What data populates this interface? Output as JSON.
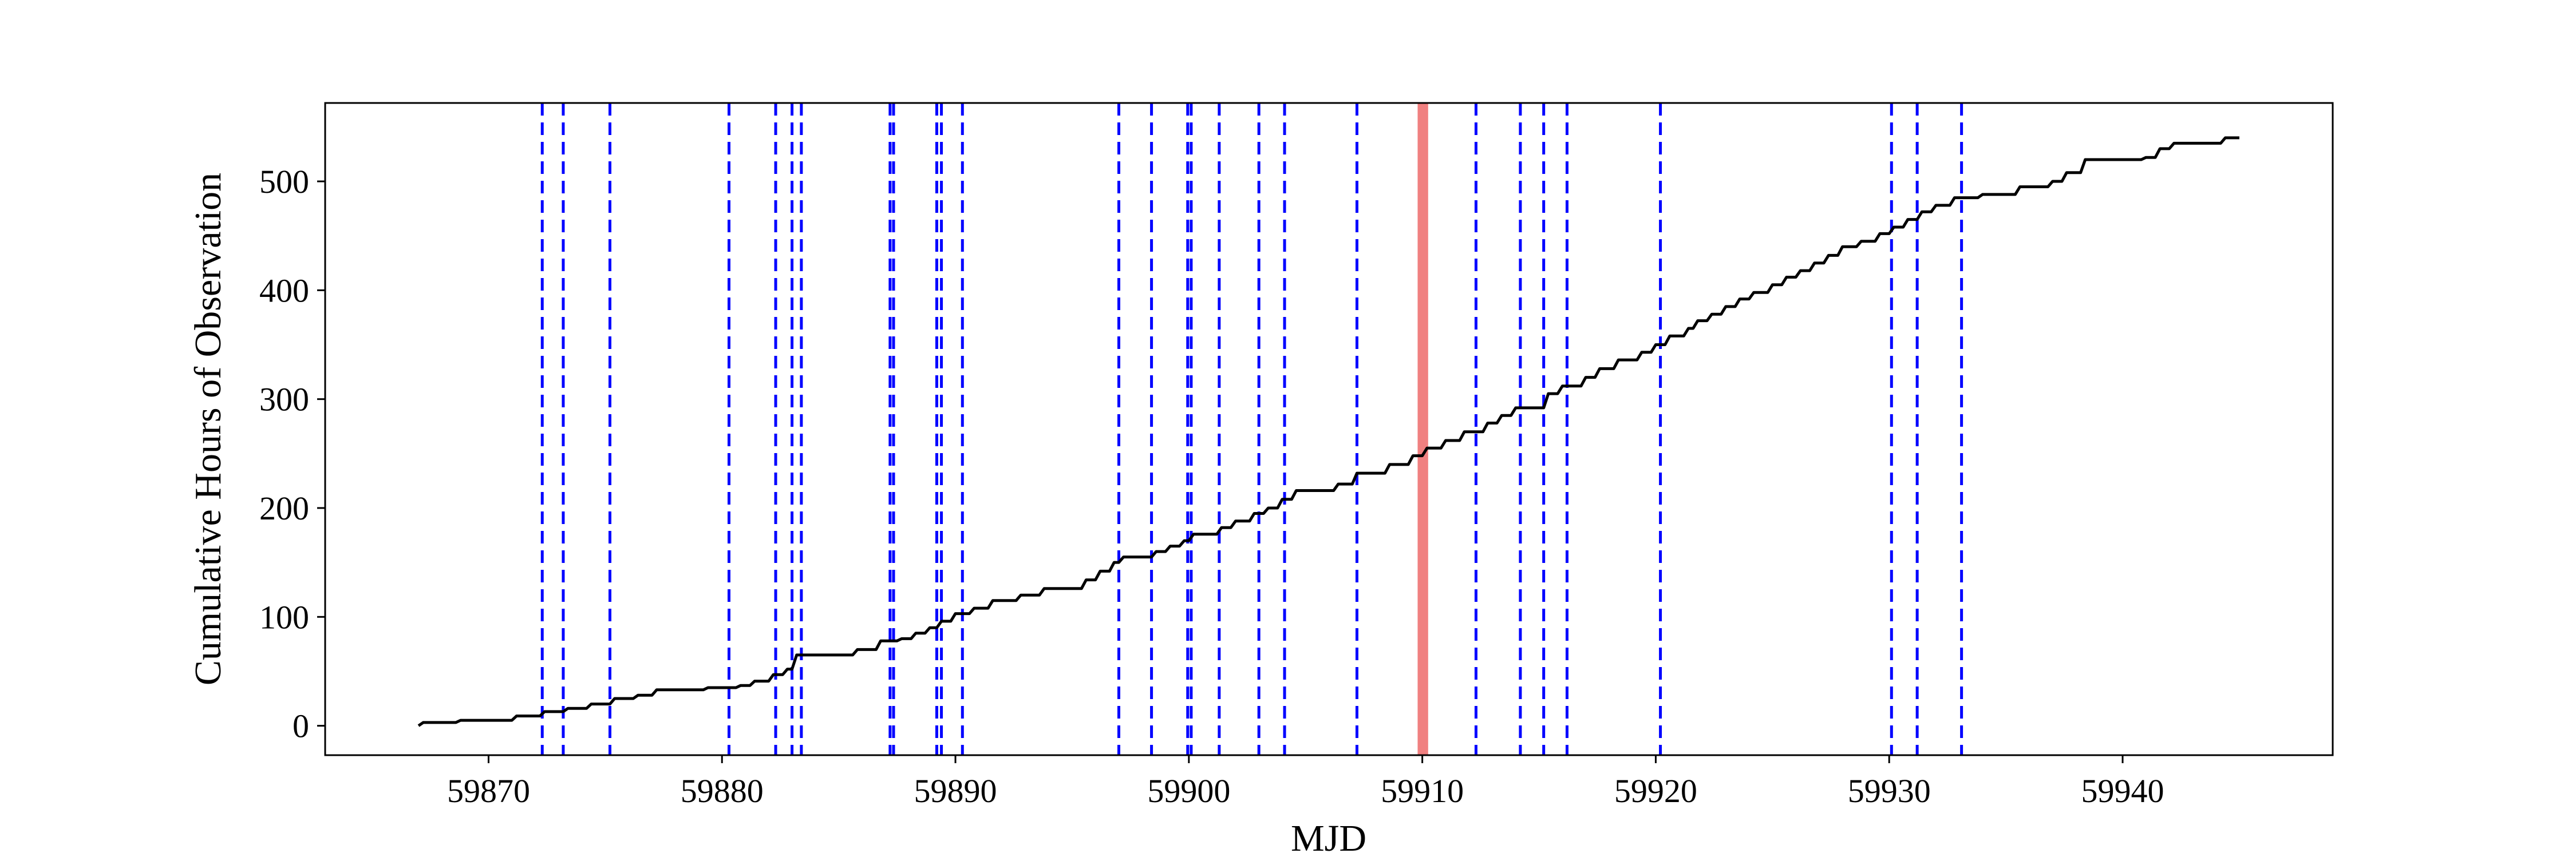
{
  "chart_data": {
    "type": "line",
    "title": "",
    "xlabel": "MJD",
    "ylabel": "Cumulative Hours of Observation",
    "xlim": [
      59863.0,
      59949.0
    ],
    "ylim": [
      -27,
      572
    ],
    "xticks": [
      59870,
      59880,
      59890,
      59900,
      59910,
      59920,
      59930,
      59940
    ],
    "yticks": [
      0,
      100,
      200,
      300,
      400,
      500
    ],
    "grid": false,
    "legend": "none",
    "colors": {
      "line": "#000000",
      "event_lines": "#0000ff",
      "span": "#f08080"
    },
    "series": [
      {
        "x": [
          59867.0,
          59867.2,
          59868.6,
          59868.8,
          59871.0,
          59871.2,
          59872.2,
          59872.4,
          59873.2,
          59873.4,
          59874.2,
          59874.4,
          59875.2,
          59875.4,
          59876.2,
          59876.4,
          59877.0,
          59877.2,
          59879.2,
          59879.4,
          59880.6,
          59880.8,
          59881.2,
          59881.4,
          59882.0,
          59882.2,
          59882.6,
          59882.8,
          59883.0,
          59883.2,
          59885.6,
          59885.8,
          59886.6,
          59886.8,
          59887.5,
          59887.7,
          59888.1,
          59888.3,
          59888.7,
          59888.9,
          59889.2,
          59889.4,
          59889.8,
          59890.0,
          59890.6,
          59890.8,
          59891.4,
          59891.6,
          59892.6,
          59892.8,
          59893.6,
          59893.8,
          59895.4,
          59895.6,
          59896.0,
          59896.2,
          59896.6,
          59896.8,
          59897.0,
          59897.2,
          59898.4,
          59898.6,
          59899.0,
          59899.2,
          59899.6,
          59899.8,
          59900.0,
          59900.2,
          59901.2,
          59901.4,
          59901.8,
          59902.0,
          59902.6,
          59902.8,
          59903.2,
          59903.4,
          59903.8,
          59904.0,
          59904.4,
          59904.6,
          59906.2,
          59906.4,
          59907.0,
          59907.2,
          59908.4,
          59908.6,
          59909.4,
          59909.6,
          59910.0,
          59910.2,
          59910.8,
          59911.0,
          59911.6,
          59911.8,
          59912.6,
          59912.8,
          59913.2,
          59913.4,
          59913.8,
          59914.0,
          59915.2,
          59915.4,
          59915.8,
          59916.0,
          59916.8,
          59917.0,
          59917.4,
          59917.6,
          59918.2,
          59918.4,
          59919.2,
          59919.4,
          59919.8,
          59920.0,
          59920.4,
          59920.6,
          59921.2,
          59921.4,
          59921.6,
          59921.8,
          59922.2,
          59922.4,
          59922.8,
          59923.0,
          59923.4,
          59923.6,
          59924.0,
          59924.2,
          59924.8,
          59925.0,
          59925.4,
          59925.6,
          59926.0,
          59926.2,
          59926.6,
          59926.8,
          59927.2,
          59927.4,
          59927.8,
          59928.0,
          59928.6,
          59928.8,
          59929.4,
          59929.6,
          59930.0,
          59930.2,
          59930.6,
          59930.8,
          59931.2,
          59931.4,
          59931.8,
          59932.0,
          59932.6,
          59932.8,
          59933.8,
          59934.0,
          59935.4,
          59935.6,
          59936.8,
          59937.0,
          59937.4,
          59937.6,
          59938.2,
          59938.4,
          59940.8,
          59941.0,
          59941.4,
          59941.6,
          59942.0,
          59942.2,
          59944.2,
          59944.4,
          59945.0
        ],
        "y": [
          0,
          3,
          3,
          5,
          5,
          9,
          9,
          13,
          13,
          16,
          16,
          20,
          20,
          25,
          25,
          28,
          28,
          33,
          33,
          35,
          35,
          37,
          37,
          41,
          41,
          47,
          47,
          52,
          52,
          65,
          65,
          70,
          70,
          78,
          78,
          80,
          80,
          85,
          85,
          90,
          90,
          96,
          96,
          103,
          103,
          108,
          108,
          115,
          115,
          120,
          120,
          126,
          126,
          134,
          134,
          142,
          142,
          150,
          150,
          155,
          155,
          160,
          160,
          165,
          165,
          170,
          170,
          176,
          176,
          182,
          182,
          188,
          188,
          195,
          195,
          200,
          200,
          208,
          208,
          216,
          216,
          222,
          222,
          232,
          232,
          240,
          240,
          248,
          248,
          255,
          255,
          262,
          262,
          270,
          270,
          278,
          278,
          285,
          285,
          292,
          292,
          305,
          305,
          312,
          312,
          320,
          320,
          328,
          328,
          336,
          336,
          343,
          343,
          350,
          350,
          358,
          358,
          365,
          365,
          372,
          372,
          378,
          378,
          385,
          385,
          392,
          392,
          398,
          398,
          405,
          405,
          412,
          412,
          418,
          418,
          425,
          425,
          432,
          432,
          440,
          440,
          445,
          445,
          452,
          452,
          458,
          458,
          465,
          465,
          472,
          472,
          478,
          478,
          485,
          485,
          488,
          488,
          495,
          495,
          500,
          500,
          508,
          508,
          520,
          520,
          522,
          522,
          530,
          530,
          535,
          535,
          540,
          540
        ]
      }
    ],
    "vlines": [
      59872.3,
      59873.2,
      59875.2,
      59880.3,
      59882.3,
      59883.0,
      59883.4,
      59887.2,
      59887.35,
      59889.2,
      59889.4,
      59890.3,
      59897.0,
      59898.4,
      59899.95,
      59900.1,
      59901.3,
      59903.0,
      59904.1,
      59907.2,
      59912.3,
      59914.2,
      59915.2,
      59916.2,
      59920.2,
      59930.1,
      59931.2,
      59933.1
    ],
    "vspan": [
      59909.8,
      59910.25
    ]
  }
}
